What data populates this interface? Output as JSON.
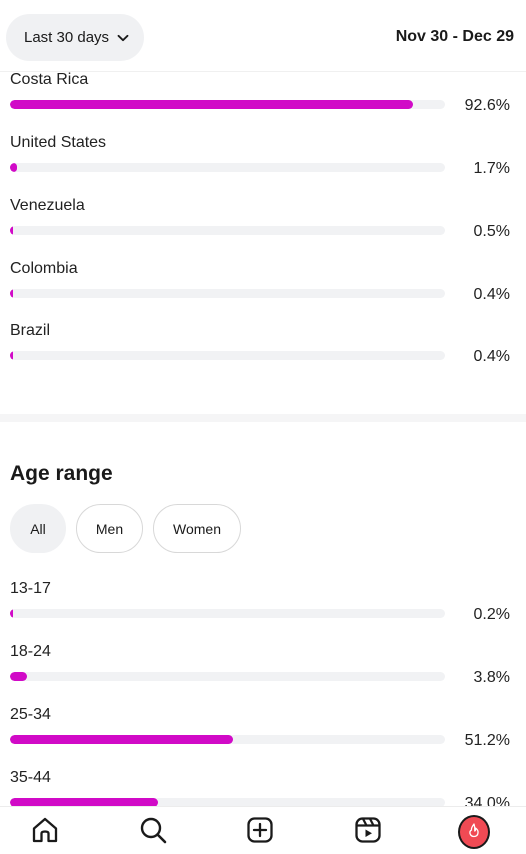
{
  "header": {
    "range_label": "Last 30 days",
    "date_range": "Nov 30 - Dec 29"
  },
  "countries": [
    {
      "label": "Costa Rica",
      "value": 92.6,
      "display": "92.6%"
    },
    {
      "label": "United States",
      "value": 1.7,
      "display": "1.7%"
    },
    {
      "label": "Venezuela",
      "value": 0.5,
      "display": "0.5%"
    },
    {
      "label": "Colombia",
      "value": 0.4,
      "display": "0.4%"
    },
    {
      "label": "Brazil",
      "value": 0.4,
      "display": "0.4%"
    }
  ],
  "age_section": {
    "title": "Age range",
    "filters": [
      {
        "label": "All",
        "active": true
      },
      {
        "label": "Men",
        "active": false
      },
      {
        "label": "Women",
        "active": false
      }
    ],
    "rows": [
      {
        "label": "13-17",
        "value": 0.2,
        "display": "0.2%"
      },
      {
        "label": "18-24",
        "value": 3.8,
        "display": "3.8%"
      },
      {
        "label": "25-34",
        "value": 51.2,
        "display": "51.2%"
      },
      {
        "label": "35-44",
        "value": 34.0,
        "display": "34.0%"
      }
    ]
  },
  "colors": {
    "bar_fill": "#d10ac7",
    "bar_track": "#f1f2f4",
    "avatar": "#f04a54"
  },
  "nav": {
    "items": [
      "home-icon",
      "search-icon",
      "create-icon",
      "reels-icon",
      "profile-avatar"
    ]
  }
}
